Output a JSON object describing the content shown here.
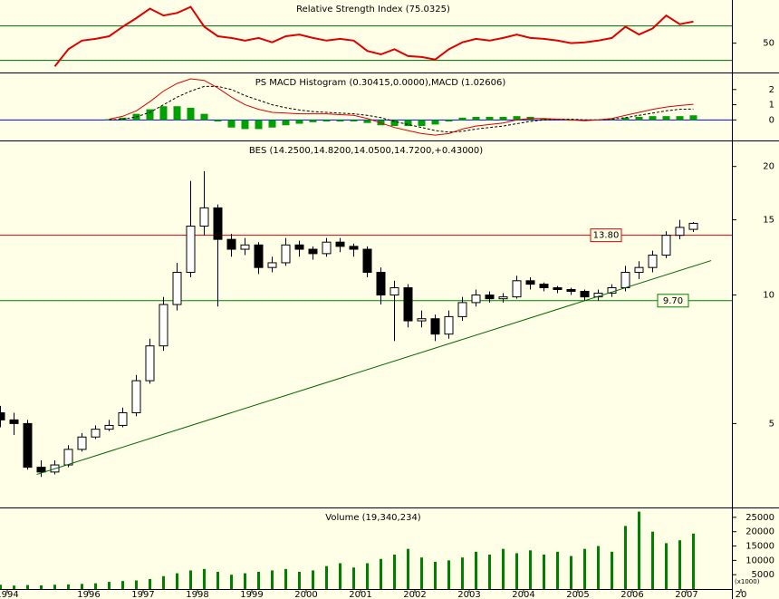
{
  "chart_data": [
    {
      "type": "line",
      "title": "Relative Strength Index (75.0325)",
      "series": [
        {
          "name": "RSI",
          "color": "#e00000",
          "style": "line",
          "values": [
            null,
            null,
            null,
            null,
            23,
            43,
            53,
            55,
            58,
            69,
            79,
            90,
            82,
            85,
            92,
            69,
            58,
            56,
            53,
            56,
            51,
            58,
            60,
            56,
            53,
            55,
            53,
            41,
            37,
            43,
            35,
            34,
            31,
            43,
            51,
            55,
            53,
            56,
            60,
            56,
            55,
            53,
            50,
            51,
            53,
            56,
            69,
            60,
            67,
            82,
            72,
            75.0325,
            null,
            null,
            null,
            null
          ]
        }
      ],
      "ylim": [
        16,
        100
      ],
      "yticks": [
        50
      ],
      "hlines": [
        {
          "value": 70,
          "color": "#006400"
        },
        {
          "value": 30,
          "color": "#006400"
        }
      ]
    },
    {
      "type": "combo",
      "title": "PS MACD Histogram (0.30415,0.0000),MACD (1.02606)",
      "series": [
        {
          "name": "PS MACD Histogram",
          "color": "#00a000",
          "style": "bars",
          "values": [
            null,
            null,
            null,
            null,
            null,
            null,
            null,
            null,
            0.05,
            0.15,
            0.4,
            0.7,
            0.9,
            0.9,
            0.8,
            0.4,
            -0.1,
            -0.5,
            -0.6,
            -0.6,
            -0.5,
            -0.35,
            -0.25,
            -0.15,
            -0.1,
            -0.1,
            -0.1,
            -0.2,
            -0.35,
            -0.4,
            -0.4,
            -0.4,
            -0.3,
            -0.1,
            0.15,
            0.2,
            0.2,
            0.2,
            0.25,
            0.2,
            0.1,
            0.0,
            -0.05,
            -0.05,
            0.0,
            0.05,
            0.15,
            0.2,
            0.25,
            0.25,
            0.25,
            0.30415,
            null,
            null,
            null,
            null
          ]
        },
        {
          "name": "Signal",
          "color": "#000000",
          "style": "dashed",
          "values": [
            null,
            null,
            null,
            null,
            null,
            null,
            null,
            null,
            0.0,
            0.05,
            0.2,
            0.5,
            1.0,
            1.5,
            1.9,
            2.2,
            2.2,
            2.0,
            1.6,
            1.3,
            1.0,
            0.8,
            0.65,
            0.55,
            0.5,
            0.45,
            0.4,
            0.3,
            0.15,
            -0.1,
            -0.3,
            -0.5,
            -0.7,
            -0.8,
            -0.75,
            -0.6,
            -0.5,
            -0.4,
            -0.25,
            -0.1,
            0.0,
            0.05,
            0.05,
            0.0,
            0.0,
            0.05,
            0.15,
            0.3,
            0.45,
            0.6,
            0.7,
            0.72,
            null,
            null,
            null,
            null
          ]
        },
        {
          "name": "MACD",
          "color": "#e00000",
          "style": "line",
          "values": [
            null,
            null,
            null,
            null,
            null,
            null,
            null,
            null,
            0.05,
            0.24,
            0.6,
            1.2,
            1.9,
            2.4,
            2.7,
            2.6,
            2.1,
            1.5,
            1.0,
            0.7,
            0.5,
            0.45,
            0.4,
            0.4,
            0.4,
            0.35,
            0.3,
            0.1,
            -0.2,
            -0.5,
            -0.7,
            -0.9,
            -1.0,
            -0.9,
            -0.6,
            -0.4,
            -0.3,
            -0.2,
            0.0,
            0.1,
            0.1,
            0.05,
            0.0,
            -0.05,
            0.0,
            0.1,
            0.3,
            0.5,
            0.7,
            0.85,
            0.95,
            1.02606,
            null,
            null,
            null,
            null
          ]
        }
      ],
      "ylim": [
        -1.35,
        3.06
      ],
      "yticks": [
        2,
        1,
        0
      ],
      "hlines": [
        {
          "value": 0,
          "color": "#0000ff"
        }
      ]
    },
    {
      "type": "candlestick",
      "title": "BES (14.2500,14.8200,14.0500,14.7200,+0.43000)",
      "log": true,
      "open": [
        5.3,
        5.1,
        5.0,
        3.95,
        3.85,
        4.0,
        4.35,
        4.65,
        4.85,
        4.95,
        5.3,
        6.3,
        7.6,
        9.5,
        11.3,
        14.5,
        16.0,
        13.5,
        12.8,
        13.1,
        11.6,
        11.9,
        13.1,
        12.8,
        12.5,
        13.3,
        13.0,
        12.8,
        11.3,
        10.0,
        10.4,
        8.7,
        8.8,
        8.1,
        8.9,
        9.6,
        10.0,
        9.8,
        9.9,
        10.8,
        10.6,
        10.4,
        10.3,
        10.2,
        9.9,
        10.1,
        10.4,
        11.3,
        11.6,
        12.4,
        13.8,
        14.25,
        null,
        null,
        null,
        null
      ],
      "high": [
        5.5,
        5.3,
        5.1,
        4.1,
        4.1,
        4.45,
        4.75,
        4.95,
        5.1,
        5.45,
        6.5,
        7.9,
        9.9,
        11.9,
        18.5,
        19.5,
        16.3,
        13.9,
        13.6,
        13.3,
        12.3,
        13.6,
        13.4,
        13.0,
        13.6,
        13.6,
        13.2,
        13.0,
        11.6,
        10.8,
        10.6,
        9.2,
        9.0,
        9.2,
        9.9,
        10.3,
        10.2,
        10.1,
        11.1,
        11.0,
        10.7,
        10.5,
        10.4,
        10.3,
        10.3,
        10.6,
        11.7,
        12.0,
        12.7,
        14.1,
        15.0,
        14.82,
        null,
        null,
        null,
        null
      ],
      "low": [
        4.9,
        4.7,
        3.9,
        3.75,
        3.8,
        3.95,
        4.3,
        4.6,
        4.8,
        4.9,
        5.2,
        6.2,
        7.4,
        9.2,
        11.0,
        13.8,
        9.4,
        12.3,
        12.4,
        11.2,
        11.3,
        11.7,
        12.3,
        12.1,
        12.3,
        12.6,
        12.3,
        11.0,
        9.5,
        7.8,
        8.4,
        8.4,
        7.8,
        7.9,
        8.7,
        9.4,
        9.6,
        9.6,
        9.8,
        10.3,
        10.2,
        10.1,
        10.0,
        9.7,
        9.7,
        9.9,
        10.2,
        10.9,
        11.3,
        12.2,
        13.5,
        14.05,
        null,
        null,
        null,
        null
      ],
      "close": [
        5.1,
        5.0,
        3.95,
        3.85,
        4.0,
        4.35,
        4.65,
        4.85,
        4.95,
        5.3,
        6.3,
        7.6,
        9.5,
        11.3,
        14.5,
        16.0,
        13.5,
        12.8,
        13.1,
        11.6,
        11.9,
        13.1,
        12.8,
        12.5,
        13.3,
        13.0,
        12.8,
        11.3,
        10.0,
        10.4,
        8.7,
        8.8,
        8.1,
        8.9,
        9.6,
        10.0,
        9.8,
        9.9,
        10.8,
        10.6,
        10.4,
        10.3,
        10.2,
        9.9,
        10.1,
        10.4,
        11.3,
        11.6,
        12.4,
        13.8,
        14.4,
        14.72,
        null,
        null,
        null,
        null
      ],
      "ylim": [
        3.18,
        22.9
      ],
      "yticks": [
        20,
        15,
        10,
        5
      ],
      "hlines": [
        {
          "value": 13.8,
          "label": "13.80",
          "color": "#e00000"
        },
        {
          "value": 9.7,
          "label": "9.70",
          "color": "#008000"
        }
      ],
      "trend_line": {
        "x": [
          2.67,
          52.3
        ],
        "y": [
          3.8,
          12.04
        ],
        "color": "#006400"
      }
    },
    {
      "type": "bar",
      "title": "Volume (19,340,234)",
      "y_unit_label": "(x1000)",
      "color": "#008000",
      "categories": [
        null,
        "1994",
        null,
        null,
        null,
        null,
        null,
        "1996",
        null,
        null,
        null,
        "1997",
        null,
        null,
        null,
        "1998",
        null,
        null,
        null,
        "1999",
        null,
        null,
        null,
        "2000",
        null,
        null,
        null,
        "2001",
        null,
        null,
        null,
        "2002",
        null,
        null,
        null,
        "2003",
        null,
        null,
        null,
        "2004",
        null,
        null,
        null,
        "2005",
        null,
        null,
        null,
        "2006",
        null,
        null,
        null,
        "2007",
        null,
        null,
        null,
        "20"
      ],
      "values": [
        1500,
        1200,
        1400,
        1300,
        1500,
        1600,
        1800,
        2000,
        2500,
        2800,
        3000,
        3500,
        4500,
        5500,
        6500,
        7000,
        6000,
        5000,
        5500,
        6000,
        6500,
        7000,
        6000,
        6500,
        8000,
        9000,
        7500,
        9000,
        10500,
        12000,
        14000,
        11000,
        9500,
        10000,
        11000,
        13000,
        12000,
        14000,
        12500,
        13500,
        12000,
        13000,
        11500,
        14000,
        15000,
        13000,
        22000,
        27000,
        20000,
        16000,
        17000,
        19340.234,
        null,
        null,
        null,
        null
      ],
      "ylim": [
        0,
        28125
      ],
      "yticks": [
        25000,
        20000,
        15000,
        10000,
        5000
      ]
    }
  ]
}
